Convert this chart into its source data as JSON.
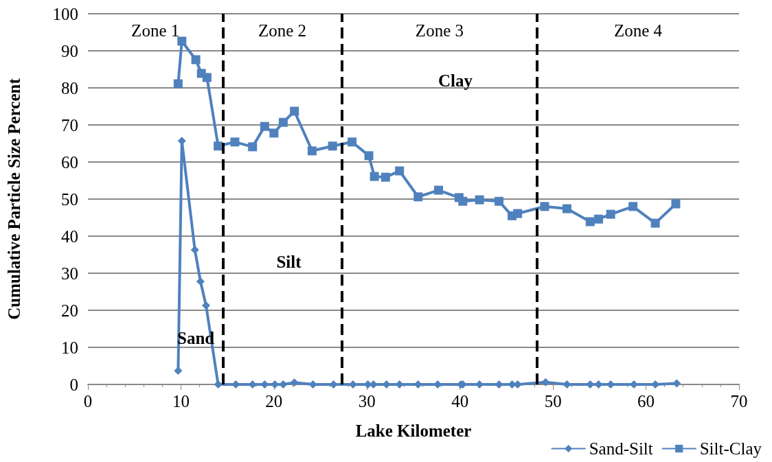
{
  "chart_data": {
    "type": "line",
    "xlabel": "Lake Kilometer",
    "ylabel": "Cumulative Particle Size Percent",
    "xlim": [
      0,
      70
    ],
    "xticks": [
      0,
      10,
      20,
      30,
      40,
      50,
      60,
      70
    ],
    "ylim": [
      0,
      100
    ],
    "yticks": [
      0,
      10,
      20,
      30,
      40,
      50,
      60,
      70,
      80,
      90,
      100
    ],
    "grid": "y",
    "legend": "bottom right",
    "line_style": "solid",
    "series": [
      {
        "name": "Sand-Silt",
        "color": "#4f81bd",
        "marker": "diamond",
        "x": [
          9.7,
          10.1,
          11.5,
          12.1,
          12.7,
          14.0,
          15.9,
          17.7,
          19.0,
          20.1,
          21.0,
          22.2,
          24.2,
          26.4,
          28.5,
          30.1,
          30.7,
          32.1,
          33.5,
          35.5,
          37.6,
          40.1,
          40.3,
          42.1,
          44.2,
          45.6,
          46.2,
          49.2,
          51.5,
          54.0,
          54.9,
          56.2,
          58.7,
          61.0,
          63.3
        ],
        "values": [
          3.7,
          65.7,
          36.3,
          27.8,
          21.3,
          0,
          0,
          0,
          0,
          0,
          0,
          0.5,
          0,
          0,
          0,
          0,
          0,
          0,
          0,
          0,
          0,
          0,
          0,
          0,
          0,
          0,
          0,
          0.6,
          0,
          0,
          0,
          0,
          0,
          0,
          0.3
        ]
      },
      {
        "name": "Silt-Clay",
        "color": "#4f81bd",
        "marker": "square",
        "x": [
          9.7,
          10.1,
          11.6,
          12.2,
          12.8,
          14.0,
          15.8,
          17.7,
          19.0,
          20.0,
          21.0,
          22.2,
          24.1,
          26.3,
          28.4,
          30.2,
          30.8,
          32.0,
          33.5,
          35.5,
          37.7,
          39.9,
          40.3,
          42.1,
          44.2,
          45.6,
          46.2,
          49.1,
          51.5,
          54.0,
          54.9,
          56.2,
          58.6,
          61.0,
          63.2
        ],
        "values": [
          81.1,
          92.6,
          87.6,
          83.9,
          82.8,
          64.3,
          65.4,
          64.1,
          69.6,
          67.8,
          70.7,
          73.7,
          63.0,
          64.3,
          65.4,
          61.7,
          56.1,
          55.9,
          57.6,
          50.6,
          52.4,
          50.4,
          49.4,
          49.8,
          49.4,
          45.5,
          46.1,
          48.0,
          47.4,
          43.9,
          44.6,
          45.9,
          48.0,
          43.5,
          48.7
        ]
      }
    ],
    "ref_lines": [
      {
        "axis": "x",
        "value": 14.5,
        "color": "#000000",
        "line_style": "dashed"
      },
      {
        "axis": "x",
        "value": 27.3,
        "color": "#000000",
        "line_style": "dashed"
      },
      {
        "axis": "x",
        "value": 48.3,
        "color": "#000000",
        "line_style": "dashed"
      }
    ],
    "annotations": [
      "Zone 1",
      "Zone 2",
      "Zone 3",
      "Zone 4",
      "Clay",
      "Silt",
      "Sand"
    ]
  }
}
